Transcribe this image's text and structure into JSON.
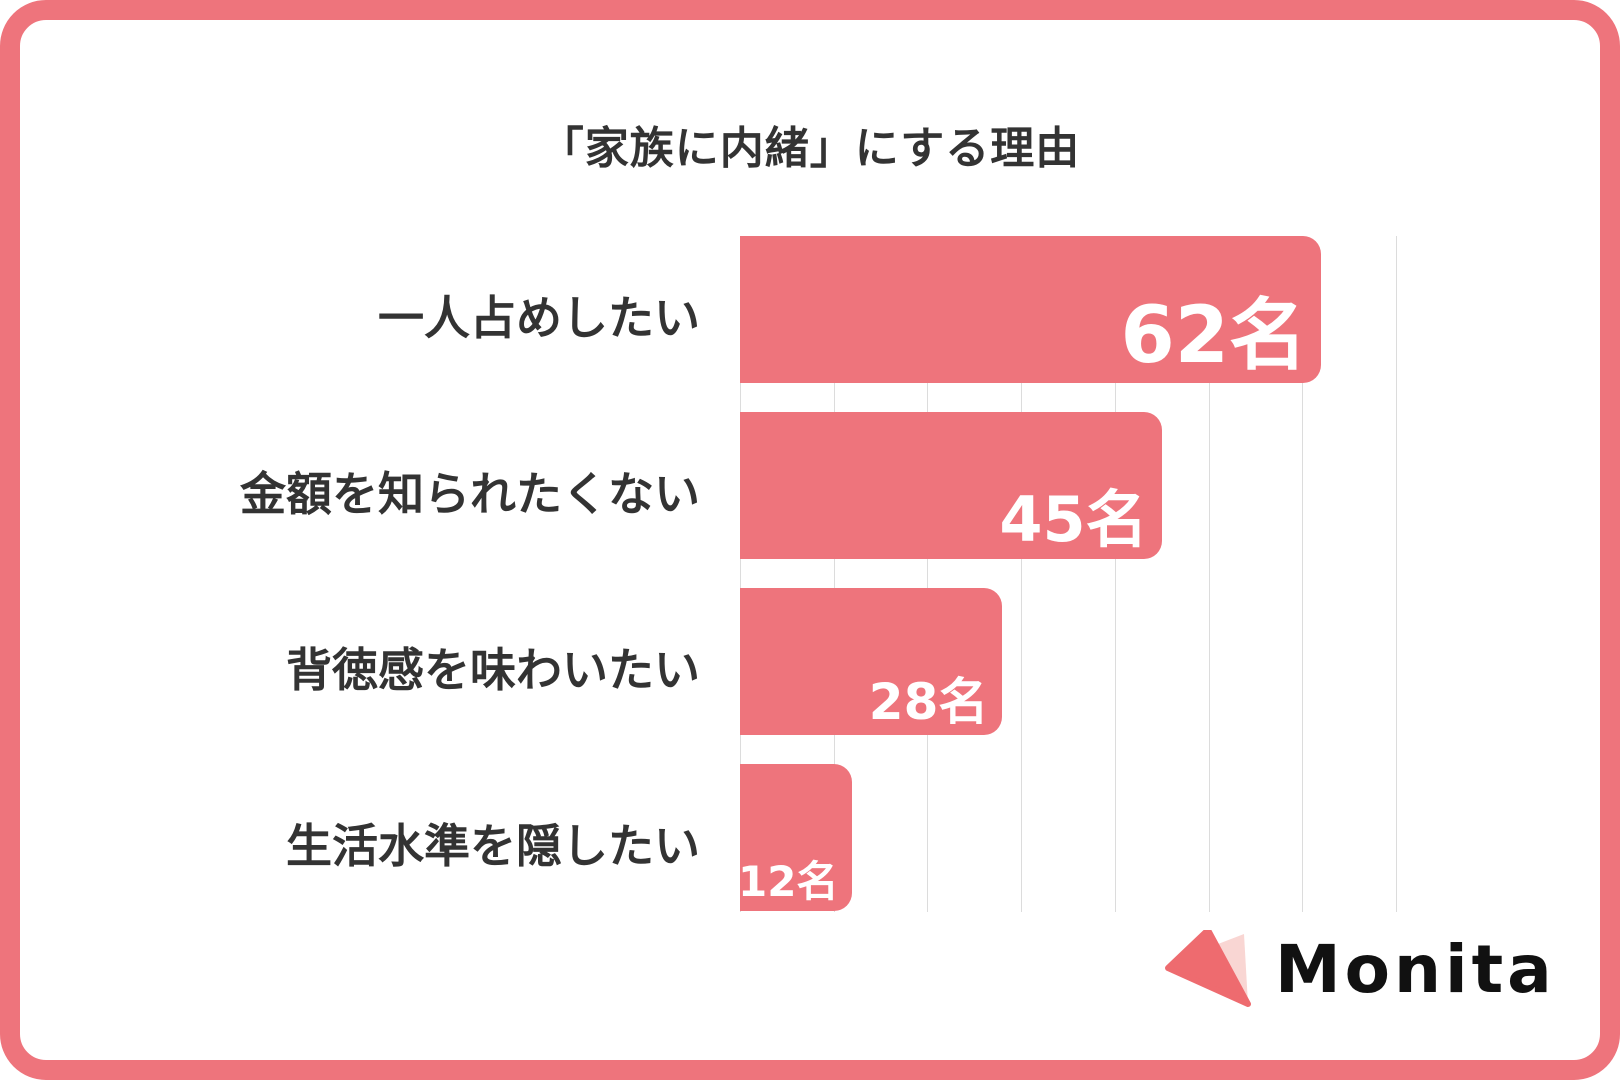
{
  "title": "「家族に内緒」にする理由",
  "brand": {
    "name": "Monita",
    "accent": "#ee747c",
    "accent_light": "#f9d6d3",
    "text_color": "#333333"
  },
  "axis": {
    "max": 70,
    "gridlines": [
      0,
      10,
      20,
      30,
      40,
      50,
      60,
      70
    ]
  },
  "bars": [
    {
      "label": "一人占めしたい",
      "value": 62,
      "display": "62名",
      "font_size": 78
    },
    {
      "label": "金額を知られたくない",
      "value": 45,
      "display": "45名",
      "font_size": 62
    },
    {
      "label": "背徳感を味わいたい",
      "value": 28,
      "display": "28名",
      "font_size": 50
    },
    {
      "label": "生活水準を隠したい",
      "value": 12,
      "display": "12名",
      "font_size": 42
    }
  ],
  "chart_data": {
    "type": "bar",
    "orientation": "horizontal",
    "title": "「家族に内緒」にする理由",
    "categories": [
      "一人占めしたい",
      "金額を知られたくない",
      "背徳感を味わいたい",
      "生活水準を隠したい"
    ],
    "values": [
      62,
      45,
      28,
      12
    ],
    "value_labels": [
      "62名",
      "45名",
      "28名",
      "12名"
    ],
    "unit": "名",
    "xlabel": "",
    "ylabel": "",
    "xlim": [
      0,
      70
    ],
    "grid": true,
    "grid_step": 10,
    "legend": null,
    "bar_color": "#ee747c"
  }
}
